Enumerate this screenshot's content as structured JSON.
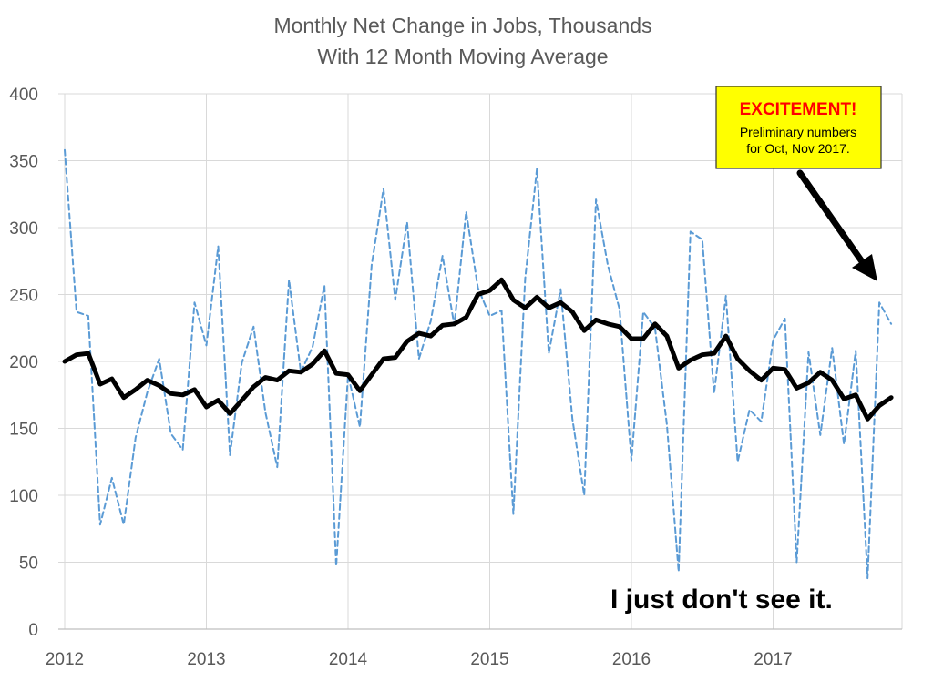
{
  "chart_data": {
    "type": "line",
    "title": "Monthly Net Change in Jobs, Thousands",
    "subtitle": "With 12 Month Moving Average",
    "xlabel": "",
    "ylabel": "",
    "ylim": [
      0,
      400
    ],
    "y_ticks": [
      "0",
      "50",
      "100",
      "150",
      "200",
      "250",
      "300",
      "350",
      "400"
    ],
    "x_ticks": [
      {
        "label": "2012",
        "index": 0
      },
      {
        "label": "2013",
        "index": 12
      },
      {
        "label": "2014",
        "index": 24
      },
      {
        "label": "2015",
        "index": 36
      },
      {
        "label": "2016",
        "index": 48
      },
      {
        "label": "2017",
        "index": 60
      }
    ],
    "grid": true,
    "series": [
      {
        "style": "dashed",
        "color": "#5b9bd5",
        "values": [
          358,
          237,
          234,
          78,
          113,
          78,
          143,
          177,
          202,
          146,
          134,
          244,
          212,
          286,
          130,
          199,
          226,
          162,
          121,
          261,
          192,
          211,
          257,
          47,
          190,
          151,
          272,
          329,
          246,
          304,
          202,
          230,
          279,
          227,
          312,
          255,
          234,
          238,
          86,
          262,
          344,
          206,
          254,
          157,
          100,
          321,
          272,
          239,
          126,
          237,
          225,
          153,
          43,
          297,
          291,
          176,
          249,
          125,
          164,
          155,
          216,
          232,
          50,
          207,
          145,
          210,
          138,
          208,
          38,
          244,
          228
        ],
        "months": 71
      },
      {
        "style": "solid",
        "color": "#000000",
        "values": [
          200,
          205,
          206,
          183,
          187,
          173,
          179,
          186,
          182,
          176,
          175,
          179,
          166,
          171,
          161,
          171,
          181,
          188,
          186,
          193,
          192,
          198,
          208,
          191,
          190,
          178,
          190,
          202,
          203,
          215,
          221,
          219,
          227,
          228,
          233,
          250,
          253,
          261,
          246,
          240,
          248,
          240,
          244,
          237,
          223,
          231,
          228,
          226,
          217,
          217,
          228,
          219,
          195,
          201,
          205,
          206,
          219,
          202,
          193,
          186,
          195,
          194,
          180,
          184,
          192,
          186,
          172,
          175,
          157,
          167,
          173
        ],
        "months": 71
      }
    ],
    "annotations": {
      "callout_title": "EXCITEMENT!",
      "callout_line1": "Preliminary numbers",
      "callout_line2": "for Oct, Nov 2017.",
      "note": "I just don't see it."
    }
  }
}
